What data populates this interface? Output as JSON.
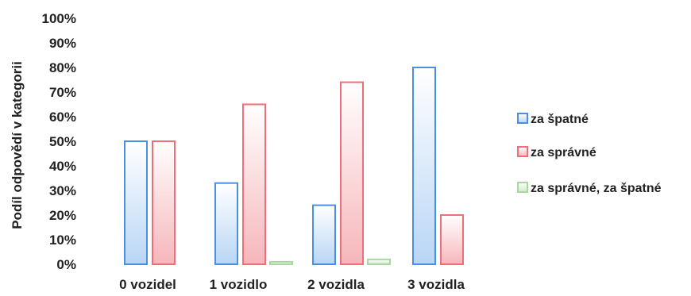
{
  "chart_data": {
    "type": "bar",
    "ylabel": "Podíl odpovědí v kategorii",
    "xlabel": "",
    "ylim": [
      0,
      100
    ],
    "yticks": [
      "0%",
      "10%",
      "20%",
      "30%",
      "40%",
      "50%",
      "60%",
      "70%",
      "80%",
      "90%",
      "100%"
    ],
    "categories": [
      "0 vozidel",
      "1 vozidlo",
      "2 vozidla",
      "3 vozidla"
    ],
    "series": [
      {
        "name": "za špatné",
        "values": [
          50,
          33,
          24,
          80
        ],
        "color": "#4a90e2"
      },
      {
        "name": "za správné",
        "values": [
          50,
          65,
          74,
          20
        ],
        "color": "#ee6f78"
      },
      {
        "name": "za správné, za špatné",
        "values": [
          0,
          1,
          2,
          0
        ],
        "color": "#a8d8a0"
      }
    ],
    "legend_position": "right",
    "grid": false
  }
}
